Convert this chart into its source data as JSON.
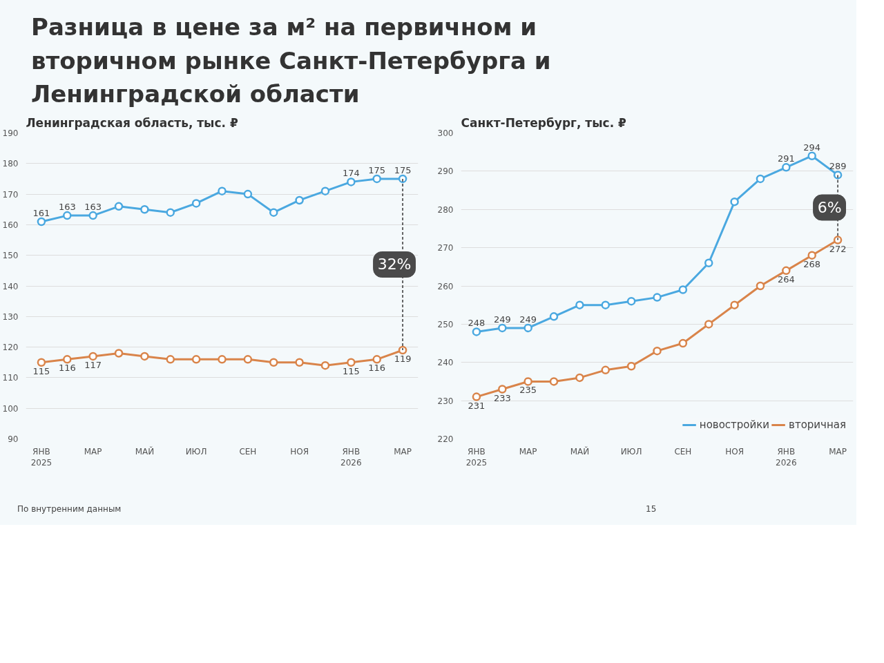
{
  "chart_data": [
    {
      "type": "line",
      "title": "Разница в цене за м² на первичном и вторичном рынке Санкт-Петербурга и Ленинградской области",
      "subtitle": "Ленинградская область, тыс. ₽",
      "categories": [
        "ЯНВ\n2025",
        null,
        "МАР",
        null,
        "МАЙ",
        null,
        "ИЮЛ",
        null,
        "СЕН",
        null,
        "НОЯ",
        null,
        "ЯНВ\n2026",
        null,
        "МАР"
      ],
      "series": [
        {
          "color": "#4aa8e0",
          "values": [
            161,
            163,
            163,
            166,
            165,
            164,
            167,
            171,
            170,
            164,
            168,
            171,
            174,
            175,
            175
          ],
          "value_labels": [
            "161",
            "163",
            "163",
            null,
            null,
            null,
            null,
            null,
            null,
            null,
            null,
            null,
            "174",
            "175",
            "175"
          ]
        },
        {
          "color": "#d9844a",
          "values": [
            115,
            116,
            117,
            118,
            117,
            116,
            116,
            116,
            116,
            115,
            115,
            114,
            115,
            116,
            119
          ],
          "value_labels": [
            "115",
            "116",
            "117",
            null,
            null,
            null,
            null,
            null,
            null,
            null,
            null,
            null,
            "115",
            "116",
            "119"
          ]
        }
      ],
      "ylim": [
        90,
        190
      ],
      "yticks": [
        90,
        100,
        110,
        120,
        130,
        140,
        150,
        160,
        170,
        180,
        190
      ],
      "grid": "y",
      "marker": "circle",
      "line_style": "solid",
      "legend": false,
      "annotations": [
        "32%"
      ]
    },
    {
      "type": "line",
      "title": "Санкт-Петербург, тыс. ₽",
      "categories": [
        "ЯНВ\n2025",
        null,
        "МАР",
        null,
        "МАЙ",
        null,
        "ИЮЛ",
        null,
        "СЕН",
        null,
        "НОЯ",
        null,
        "ЯНВ\n2026",
        null,
        "МАР"
      ],
      "series": [
        {
          "name": "новостройки",
          "color": "#4aa8e0",
          "values": [
            248,
            249,
            249,
            252,
            255,
            255,
            256,
            257,
            259,
            266,
            282,
            288,
            291,
            294,
            289
          ],
          "value_labels": [
            "248",
            "249",
            "249",
            null,
            null,
            null,
            null,
            null,
            null,
            null,
            null,
            null,
            "291",
            "294",
            "289"
          ]
        },
        {
          "name": "вторичная",
          "color": "#d9844a",
          "values": [
            231,
            233,
            235,
            235,
            236,
            238,
            239,
            243,
            245,
            250,
            255,
            260,
            264,
            268,
            272
          ],
          "value_labels": [
            "231",
            "233",
            "235",
            null,
            null,
            null,
            null,
            null,
            null,
            null,
            null,
            null,
            "264",
            "268",
            "272"
          ]
        }
      ],
      "ylim": [
        220,
        300
      ],
      "yticks": [
        220,
        230,
        240,
        250,
        260,
        270,
        280,
        290,
        300
      ],
      "grid": "y",
      "marker": "circle",
      "line_style": "solid",
      "legend": "bottom right",
      "annotations": [
        "6%",
        "По внутренним данным",
        "15"
      ]
    }
  ]
}
